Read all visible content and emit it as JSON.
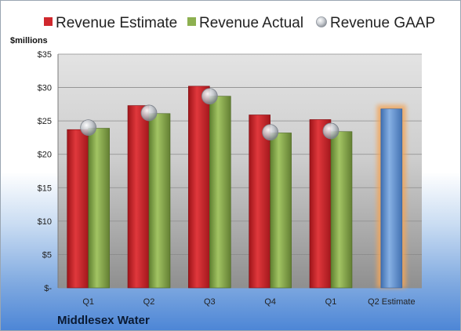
{
  "chart_data": {
    "type": "bar",
    "categories": [
      "Q1",
      "Q2",
      "Q3",
      "Q4",
      "Q1",
      "Q2 Estimate"
    ],
    "series": [
      {
        "name": "Revenue Estimate",
        "values": [
          23.7,
          27.3,
          30.2,
          25.9,
          25.2,
          null
        ],
        "color": "#d0282d"
      },
      {
        "name": "Revenue Actual",
        "values": [
          23.9,
          26.1,
          28.7,
          23.2,
          23.4,
          null
        ],
        "color": "#8db050"
      },
      {
        "name": "Revenue GAAP",
        "values": [
          24.0,
          26.2,
          28.7,
          23.3,
          23.5,
          null
        ],
        "color": "#b9bec6"
      }
    ],
    "estimate": {
      "category": "Q2 Estimate",
      "value": 26.8,
      "color": "#6b9bd6",
      "glow": "#f2a65a"
    },
    "yunit": "$millions",
    "ylim": [
      0,
      35
    ],
    "yticks": [
      0,
      5,
      10,
      15,
      20,
      25,
      30,
      35
    ],
    "ytick_labels": [
      "$-",
      "$5",
      "$10",
      "$15",
      "$20",
      "$25",
      "$30",
      "$35"
    ],
    "grid": true,
    "legend_position": "top",
    "company": "Middlesex Water"
  }
}
